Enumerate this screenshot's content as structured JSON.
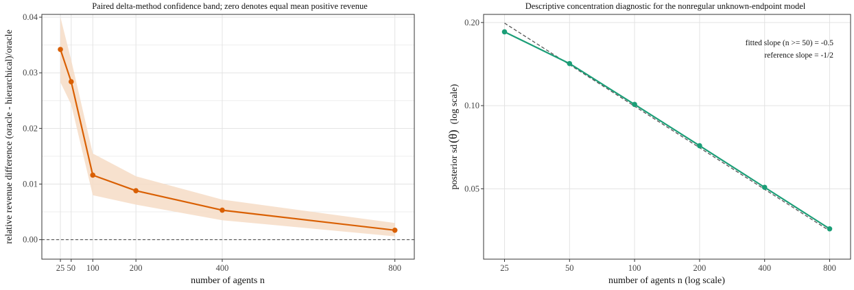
{
  "chart_data": [
    {
      "type": "line",
      "title": "Paired delta-method confidence band; zero denotes equal mean positive revenue",
      "xlabel": "number of agents  n",
      "ylabel": "relative revenue difference  (oracle - hierarchical)/oracle",
      "xlim": [
        -18,
        845
      ],
      "ylim": [
        -0.0035,
        0.0405
      ],
      "x_ticks": [
        25,
        50,
        100,
        200,
        400,
        800
      ],
      "x_tick_labels": [
        "25",
        "50",
        "100",
        "200",
        "400",
        "800"
      ],
      "y_ticks": [
        0,
        0.01,
        0.02,
        0.03,
        0.04
      ],
      "y_tick_labels": [
        "0.00",
        "0.01",
        "0.02",
        "0.03",
        "0.04"
      ],
      "grid": true,
      "reference_line": {
        "y": 0,
        "style": "dashed"
      },
      "series": [
        {
          "x": [
            25,
            50,
            100,
            200,
            400,
            800
          ],
          "values": [
            0.0342,
            0.0284,
            0.0116,
            0.0088,
            0.0053,
            0.0017
          ],
          "lower": [
            0.0283,
            0.0243,
            0.008,
            0.0063,
            0.0035,
            0.0006
          ],
          "upper": [
            0.04,
            0.0323,
            0.0155,
            0.0114,
            0.0072,
            0.003
          ],
          "color": "#d95f02",
          "band_color": "#f6dcc6"
        }
      ]
    },
    {
      "type": "line",
      "title": "Descriptive concentration diagnostic for the nonregular unknown-endpoint model",
      "xlabel": "number of agents  n  (log scale)",
      "ylabel_prefix": "posterior sd",
      "ylabel_theta": "(θ)",
      "ylabel_suffix": "(log scale)",
      "x_scale": "log",
      "y_scale": "log",
      "xlim": [
        20,
        1000
      ],
      "ylim": [
        0.0278,
        0.214
      ],
      "x_ticks": [
        25,
        50,
        100,
        200,
        400,
        800
      ],
      "x_tick_labels": [
        "25",
        "50",
        "100",
        "200",
        "400",
        "800"
      ],
      "y_ticks": [
        0.05,
        0.1,
        0.2
      ],
      "y_tick_labels": [
        "0.05",
        "0.10",
        "0.20"
      ],
      "grid": true,
      "annotations": [
        "fitted slope (n >= 50) = -0.5",
        "reference slope = -1/2"
      ],
      "reference_line": {
        "x": [
          25,
          800
        ],
        "y": [
          0.199,
          0.0352
        ],
        "style": "dashed"
      },
      "series": [
        {
          "x": [
            25,
            50,
            100,
            200,
            400,
            800
          ],
          "values": [
            0.185,
            0.142,
            0.101,
            0.0716,
            0.0506,
            0.0358
          ],
          "color": "#1b9e77"
        }
      ]
    }
  ]
}
